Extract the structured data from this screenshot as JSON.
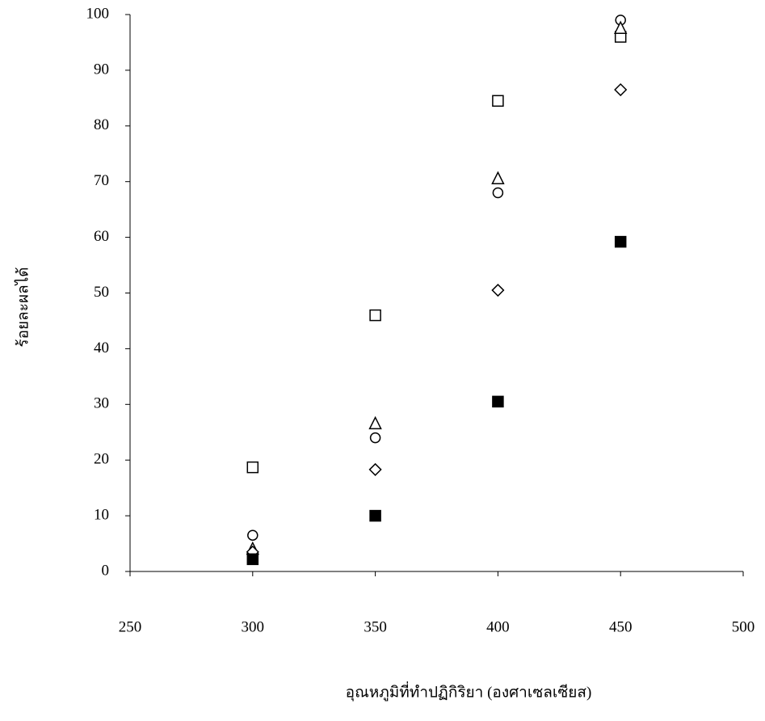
{
  "chart_data": {
    "type": "scatter",
    "x_label": "อุณหภูมิที่ทำปฏิกิริยา (องศาเซลเซียส)",
    "y_label": "ร้อยละผลได้",
    "xlim": [
      250,
      500
    ],
    "xticks": [
      250,
      300,
      350,
      400,
      450,
      500
    ],
    "ylim": [
      0,
      100
    ],
    "yticks": [
      0,
      10,
      20,
      30,
      40,
      50,
      60,
      70,
      80,
      90,
      100
    ],
    "series": [
      {
        "marker": "square",
        "filled": false,
        "color": "#000000",
        "x": [
          300,
          350,
          400,
          450
        ],
        "values": [
          18.7,
          46,
          84.5,
          96
        ]
      },
      {
        "marker": "circle",
        "filled": false,
        "color": "#000000",
        "x": [
          300,
          350,
          400,
          450
        ],
        "values": [
          6.5,
          24,
          68,
          99
        ]
      },
      {
        "marker": "triangle",
        "filled": false,
        "color": "#000000",
        "x": [
          300,
          350,
          400,
          450
        ],
        "values": [
          4,
          26.5,
          70.5,
          97.5
        ]
      },
      {
        "marker": "diamond",
        "filled": false,
        "color": "#000000",
        "x": [
          300,
          350,
          400,
          450
        ],
        "values": [
          3.5,
          18.3,
          50.5,
          86.5
        ]
      },
      {
        "marker": "square",
        "filled": true,
        "color": "#000000",
        "x": [
          300,
          350,
          400,
          450
        ],
        "values": [
          2.2,
          10,
          30.5,
          59.2
        ]
      }
    ]
  }
}
